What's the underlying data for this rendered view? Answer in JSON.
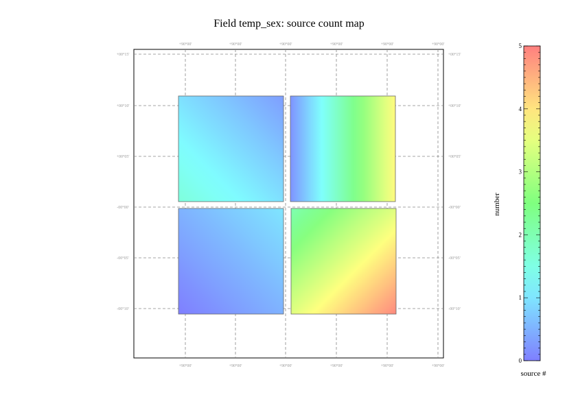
{
  "chart_data": {
    "type": "heatmap",
    "title": "Field temp_sex: source count map",
    "colorbar": {
      "label": "number",
      "xlabel": "source #",
      "range": [
        0,
        5
      ],
      "ticks": [
        "0",
        "1",
        "2",
        "3",
        "4",
        "5"
      ],
      "colors": [
        "#7f7fff",
        "#7fffff",
        "#7fff7f",
        "#ffff7f",
        "#ff7f7f"
      ]
    },
    "x_tick_labels_top": [
      "+90°00'",
      "+90°00'",
      "+90°00'",
      "+90°00'",
      "+90°00'",
      "+90°00'"
    ],
    "x_tick_labels_bottom": [
      "+90°00'",
      "+90°00'",
      "+90°00'",
      "+90°00'",
      "+90°00'",
      "+90°00'"
    ],
    "y_tick_labels": [
      "+00°15'",
      "+00°10'",
      "+00°05'",
      "-00°00'",
      "-00°05'",
      "-00°10'"
    ],
    "grid": true,
    "quadrants": [
      {
        "name": "top-left",
        "value_range": [
          0.3,
          1.6
        ],
        "gradient": "diagonal"
      },
      {
        "name": "top-right",
        "value_range": [
          0.2,
          3.8
        ],
        "gradient": "horizontal"
      },
      {
        "name": "bottom-left",
        "value_range": [
          0.0,
          1.0
        ],
        "gradient": "diagonal"
      },
      {
        "name": "bottom-right",
        "value_range": [
          2.0,
          4.9
        ],
        "gradient": "diagonal"
      }
    ]
  }
}
